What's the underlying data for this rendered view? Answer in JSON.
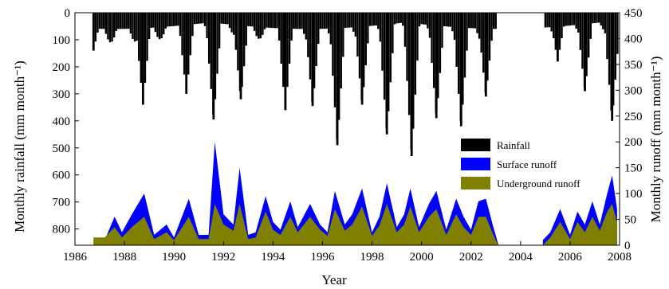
{
  "chart_data": {
    "type": "bar",
    "x_axis": {
      "label": "Year",
      "range": [
        1986,
        2008
      ],
      "ticks": [
        1986,
        1988,
        1990,
        1992,
        1994,
        1996,
        1998,
        2000,
        2002,
        2004,
        2006,
        2008
      ]
    },
    "y_left": {
      "label": "Monthly rainfall (mm month⁻¹)",
      "range": [
        0,
        860
      ],
      "inverted": true,
      "ticks": [
        0,
        100,
        200,
        300,
        400,
        500,
        600,
        700,
        800
      ]
    },
    "y_right": {
      "label": "Monthly runoff (mm month⁻¹)",
      "range": [
        0,
        450
      ],
      "ticks": [
        0,
        50,
        100,
        150,
        200,
        250,
        300,
        350,
        400,
        450
      ]
    },
    "legend": {
      "placement": "center-right",
      "items": [
        {
          "label": "Rainfall",
          "color": "#000000"
        },
        {
          "label": "Surface runoff",
          "color": "#0000ff"
        },
        {
          "label": "Underground runoff",
          "color": "#808000"
        }
      ]
    },
    "rainfall_series": {
      "name": "Rainfall",
      "x": [
        1986.75,
        1988.75,
        1990.5,
        1991.6,
        1992.7,
        1994.5,
        1995.6,
        1996.6,
        1997.6,
        1998.6,
        1999.6,
        2000.6,
        2001.6,
        2002.6,
        2005.5,
        2006.6,
        2007.7
      ],
      "y": [
        140,
        340,
        300,
        395,
        320,
        360,
        345,
        490,
        340,
        450,
        530,
        390,
        420,
        310,
        180,
        290,
        400
      ]
    },
    "runoff_series": [
      {
        "name": "Surface runoff",
        "x": [
          1986.75,
          1987.2,
          1987.6,
          1987.9,
          1988.3,
          1988.8,
          1989.2,
          1989.7,
          1990.0,
          1990.6,
          1991.0,
          1991.4,
          1991.65,
          1992.0,
          1992.4,
          1992.65,
          1993.0,
          1993.3,
          1993.7,
          1994.0,
          1994.3,
          1994.7,
          1995.0,
          1995.5,
          1995.9,
          1996.2,
          1996.5,
          1996.9,
          1997.2,
          1997.6,
          1998.0,
          1998.3,
          1998.6,
          1999.0,
          1999.3,
          1999.55,
          1999.9,
          2000.3,
          2000.6,
          2001.0,
          2001.4,
          2001.7,
          2002.0,
          2002.3,
          2002.6,
          2002.9,
          2003.1,
          2004.9,
          2005.2,
          2005.6,
          2006.0,
          2006.3,
          2006.6,
          2006.9,
          2007.2,
          2007.5,
          2007.7,
          2007.9
        ],
        "y": [
          10,
          10,
          55,
          25,
          60,
          100,
          20,
          40,
          15,
          90,
          20,
          20,
          200,
          60,
          40,
          150,
          20,
          25,
          95,
          45,
          30,
          85,
          35,
          80,
          40,
          25,
          105,
          40,
          60,
          110,
          25,
          55,
          120,
          35,
          60,
          110,
          35,
          80,
          105,
          30,
          90,
          55,
          30,
          85,
          90,
          35,
          2,
          10,
          25,
          70,
          20,
          65,
          40,
          85,
          40,
          100,
          135,
          70
        ]
      },
      {
        "name": "Underground runoff",
        "x": [
          1986.75,
          1987.2,
          1987.6,
          1987.9,
          1988.3,
          1988.8,
          1989.2,
          1989.7,
          1990.0,
          1990.6,
          1991.0,
          1991.4,
          1991.65,
          1992.0,
          1992.4,
          1992.65,
          1993.0,
          1993.3,
          1993.7,
          1994.0,
          1994.3,
          1994.7,
          1995.0,
          1995.5,
          1995.9,
          1996.2,
          1996.5,
          1996.9,
          1997.2,
          1997.6,
          1998.0,
          1998.3,
          1998.6,
          1999.0,
          1999.3,
          1999.55,
          1999.9,
          2000.3,
          2000.6,
          2001.0,
          2001.4,
          2001.7,
          2002.0,
          2002.3,
          2002.6,
          2002.9,
          2003.1,
          2004.9,
          2005.2,
          2005.6,
          2006.0,
          2006.3,
          2006.6,
          2006.9,
          2007.2,
          2007.5,
          2007.7,
          2007.9
        ],
        "y": [
          15,
          15,
          35,
          15,
          35,
          55,
          12,
          25,
          10,
          55,
          12,
          12,
          80,
          40,
          28,
          80,
          12,
          15,
          65,
          30,
          20,
          55,
          25,
          55,
          30,
          18,
          70,
          28,
          40,
          75,
          18,
          38,
          80,
          25,
          40,
          75,
          25,
          55,
          70,
          20,
          60,
          35,
          20,
          55,
          55,
          20,
          0,
          0,
          15,
          45,
          12,
          45,
          25,
          55,
          28,
          65,
          80,
          45
        ]
      }
    ]
  }
}
